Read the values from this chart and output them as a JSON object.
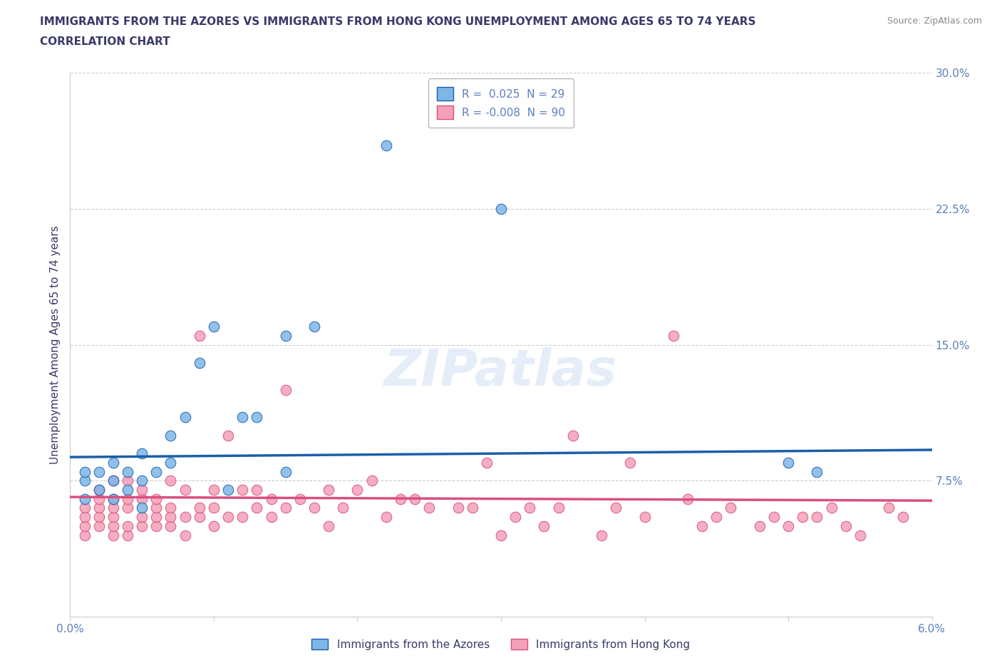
{
  "title_line1": "IMMIGRANTS FROM THE AZORES VS IMMIGRANTS FROM HONG KONG UNEMPLOYMENT AMONG AGES 65 TO 74 YEARS",
  "title_line2": "CORRELATION CHART",
  "source_text": "Source: ZipAtlas.com",
  "ylabel": "Unemployment Among Ages 65 to 74 years",
  "x_min": 0.0,
  "x_max": 0.06,
  "y_min": 0.0,
  "y_max": 0.3,
  "x_ticks": [
    0.0,
    0.01,
    0.02,
    0.03,
    0.04,
    0.05,
    0.06
  ],
  "x_tick_labels": [
    "0.0%",
    "",
    "",
    "",
    "",
    "",
    "6.0%"
  ],
  "y_ticks": [
    0.0,
    0.075,
    0.15,
    0.225,
    0.3
  ],
  "y_tick_labels": [
    "",
    "7.5%",
    "15.0%",
    "22.5%",
    "30.0%"
  ],
  "watermark": "ZIPatlas",
  "legend_r_azores": "0.025",
  "legend_n_azores": "29",
  "legend_r_hk": "-0.008",
  "legend_n_hk": "90",
  "color_azores": "#7EB6E8",
  "color_hk": "#F4A0B8",
  "color_line_azores": "#1A5FA8",
  "color_line_hk": "#D94F7E",
  "color_title": "#3A3A6A",
  "color_axis_labels": "#5B7FBF",
  "color_grid": "#CCCCCC",
  "azores_x": [
    0.001,
    0.001,
    0.001,
    0.002,
    0.002,
    0.003,
    0.003,
    0.003,
    0.004,
    0.004,
    0.005,
    0.005,
    0.005,
    0.006,
    0.007,
    0.007,
    0.008,
    0.009,
    0.01,
    0.011,
    0.012,
    0.013,
    0.015,
    0.015,
    0.017,
    0.022,
    0.03,
    0.05,
    0.052
  ],
  "azores_y": [
    0.065,
    0.075,
    0.08,
    0.07,
    0.08,
    0.065,
    0.075,
    0.085,
    0.07,
    0.08,
    0.06,
    0.075,
    0.09,
    0.08,
    0.085,
    0.1,
    0.11,
    0.14,
    0.16,
    0.07,
    0.11,
    0.11,
    0.08,
    0.155,
    0.16,
    0.26,
    0.225,
    0.085,
    0.08
  ],
  "hk_x": [
    0.001,
    0.001,
    0.001,
    0.001,
    0.002,
    0.002,
    0.002,
    0.002,
    0.002,
    0.003,
    0.003,
    0.003,
    0.003,
    0.003,
    0.003,
    0.004,
    0.004,
    0.004,
    0.004,
    0.004,
    0.005,
    0.005,
    0.005,
    0.005,
    0.006,
    0.006,
    0.006,
    0.006,
    0.007,
    0.007,
    0.007,
    0.007,
    0.008,
    0.008,
    0.008,
    0.009,
    0.009,
    0.009,
    0.01,
    0.01,
    0.01,
    0.011,
    0.011,
    0.012,
    0.012,
    0.013,
    0.013,
    0.014,
    0.014,
    0.015,
    0.015,
    0.016,
    0.017,
    0.018,
    0.018,
    0.019,
    0.02,
    0.021,
    0.022,
    0.023,
    0.024,
    0.025,
    0.027,
    0.028,
    0.029,
    0.03,
    0.031,
    0.032,
    0.033,
    0.034,
    0.035,
    0.037,
    0.038,
    0.039,
    0.04,
    0.042,
    0.043,
    0.044,
    0.045,
    0.046,
    0.048,
    0.049,
    0.05,
    0.051,
    0.052,
    0.053,
    0.054,
    0.055,
    0.057,
    0.058
  ],
  "hk_y": [
    0.045,
    0.05,
    0.055,
    0.06,
    0.05,
    0.055,
    0.06,
    0.065,
    0.07,
    0.045,
    0.05,
    0.055,
    0.06,
    0.065,
    0.075,
    0.045,
    0.05,
    0.06,
    0.065,
    0.075,
    0.05,
    0.055,
    0.065,
    0.07,
    0.05,
    0.055,
    0.06,
    0.065,
    0.05,
    0.055,
    0.06,
    0.075,
    0.045,
    0.055,
    0.07,
    0.055,
    0.06,
    0.155,
    0.05,
    0.06,
    0.07,
    0.055,
    0.1,
    0.055,
    0.07,
    0.06,
    0.07,
    0.055,
    0.065,
    0.06,
    0.125,
    0.065,
    0.06,
    0.05,
    0.07,
    0.06,
    0.07,
    0.075,
    0.055,
    0.065,
    0.065,
    0.06,
    0.06,
    0.06,
    0.085,
    0.045,
    0.055,
    0.06,
    0.05,
    0.06,
    0.1,
    0.045,
    0.06,
    0.085,
    0.055,
    0.155,
    0.065,
    0.05,
    0.055,
    0.06,
    0.05,
    0.055,
    0.05,
    0.055,
    0.055,
    0.06,
    0.05,
    0.045,
    0.06,
    0.055
  ]
}
